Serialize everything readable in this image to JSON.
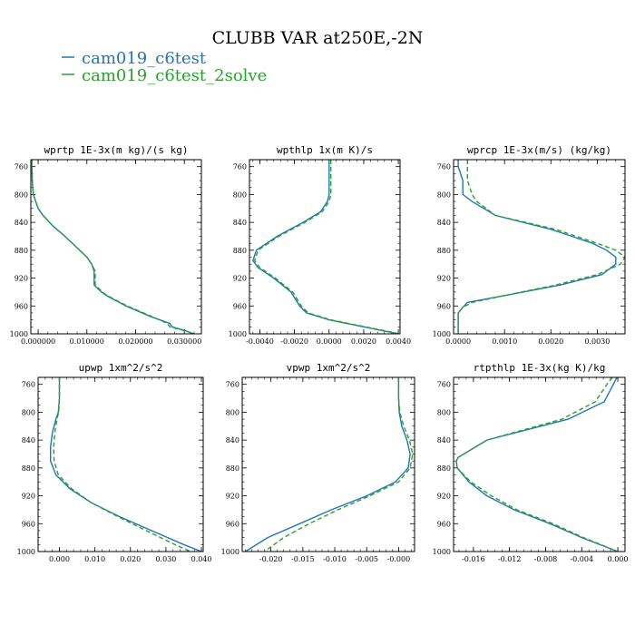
{
  "figure": {
    "title": "CLUBB VAR at250E,-2N",
    "legend": [
      {
        "label": "cam019_c6test",
        "color": "#1f77b4",
        "dash": "solid"
      },
      {
        "label": "cam019_c6test_2solve",
        "color": "#2ca02c",
        "dash": "dashed"
      }
    ]
  },
  "chart_data": [
    {
      "type": "line",
      "title": "wprtp  1E-3x(m kg)/(s kg)",
      "ylim": [
        1000,
        750
      ],
      "xlim": [
        -0.0015,
        0.0335
      ],
      "x_ticks": [
        0.0,
        0.01,
        0.02,
        0.03
      ],
      "x_tick_labels": [
        "0.000000",
        "0.010000",
        "0.020000",
        "0.030000"
      ],
      "y_ticks": [
        760,
        800,
        840,
        880,
        920,
        960,
        1000
      ],
      "series": [
        {
          "name": "cam019_c6test",
          "y": [
            750,
            760,
            780,
            800,
            820,
            830,
            845,
            860,
            880,
            890,
            900,
            910,
            920,
            930,
            940,
            945,
            960,
            975,
            985,
            990,
            995,
            1000
          ],
          "x": [
            -0.0013,
            -0.0013,
            -0.0012,
            -0.001,
            0.0,
            0.001,
            0.003,
            0.0055,
            0.0085,
            0.01,
            0.011,
            0.0115,
            0.0115,
            0.0115,
            0.013,
            0.014,
            0.018,
            0.023,
            0.027,
            0.0275,
            0.03,
            0.032
          ]
        },
        {
          "name": "cam019_c6test_2solve",
          "y": [
            750,
            760,
            780,
            800,
            820,
            830,
            845,
            860,
            880,
            890,
            900,
            910,
            920,
            930,
            940,
            945,
            960,
            975,
            985,
            990,
            995,
            1000
          ],
          "x": [
            -0.0013,
            -0.0013,
            -0.0012,
            -0.001,
            0.0,
            0.001,
            0.003,
            0.0055,
            0.0085,
            0.01,
            0.011,
            0.0117,
            0.0117,
            0.0117,
            0.0132,
            0.0142,
            0.0183,
            0.0233,
            0.0265,
            0.027,
            0.0298,
            0.032
          ]
        }
      ]
    },
    {
      "type": "line",
      "title": "wpthlp  1x(m K)/s",
      "ylim": [
        1000,
        750
      ],
      "xlim": [
        -0.0046,
        0.0041
      ],
      "x_ticks": [
        -0.004,
        -0.002,
        0.0,
        0.002,
        0.004
      ],
      "x_tick_labels": [
        "-0.0040",
        "-0.0020",
        "0.0000",
        "0.0020",
        "0.0040"
      ],
      "y_ticks": [
        760,
        800,
        840,
        880,
        920,
        960,
        1000
      ],
      "series": [
        {
          "name": "cam019_c6test",
          "y": [
            750,
            760,
            780,
            800,
            810,
            825,
            840,
            860,
            880,
            895,
            905,
            920,
            940,
            960,
            970,
            980,
            990,
            1000
          ],
          "x": [
            0.0,
            0.0,
            0.0,
            0.0,
            -0.0001,
            -0.0005,
            -0.0015,
            -0.003,
            -0.0042,
            -0.0044,
            -0.0041,
            -0.0032,
            -0.0022,
            -0.0017,
            -0.0013,
            0.0,
            0.002,
            0.004
          ]
        },
        {
          "name": "cam019_c6test_2solve",
          "y": [
            750,
            760,
            780,
            800,
            810,
            825,
            840,
            860,
            880,
            895,
            905,
            920,
            940,
            960,
            970,
            980,
            990,
            1000
          ],
          "x": [
            0.0001,
            0.0001,
            0.0001,
            0.0001,
            0.0,
            -0.0004,
            -0.0014,
            -0.0029,
            -0.0041,
            -0.0043,
            -0.004,
            -0.0031,
            -0.0021,
            -0.0016,
            -0.0012,
            0.0001,
            0.0021,
            0.0041
          ]
        }
      ]
    },
    {
      "type": "line",
      "title": "wprcp  1E-3x(m/s) (kg/kg)",
      "ylim": [
        1000,
        750
      ],
      "xlim": [
        -0.0001,
        0.0036
      ],
      "x_ticks": [
        0.0,
        0.001,
        0.002,
        0.003
      ],
      "x_tick_labels": [
        "0.0000",
        "0.0010",
        "0.0020",
        "0.0030"
      ],
      "y_ticks": [
        760,
        800,
        840,
        880,
        920,
        960,
        1000
      ],
      "series": [
        {
          "name": "cam019_c6test",
          "y": [
            750,
            760,
            780,
            800,
            810,
            830,
            850,
            870,
            880,
            890,
            900,
            915,
            930,
            945,
            955,
            962,
            970,
            980,
            1000
          ],
          "x": [
            0.0,
            0.0,
            0.0001,
            0.0001,
            0.0003,
            0.0008,
            0.002,
            0.0029,
            0.0032,
            0.0034,
            0.0034,
            0.0031,
            0.0022,
            0.001,
            0.0002,
            0.0001,
            0.0,
            0.0,
            0.0
          ]
        },
        {
          "name": "cam019_c6test_2solve",
          "y": [
            750,
            760,
            780,
            800,
            810,
            830,
            850,
            870,
            880,
            890,
            900,
            915,
            930,
            945,
            955,
            962,
            970,
            980,
            1000
          ],
          "x": [
            0.0002,
            0.0002,
            0.0002,
            0.0003,
            0.0004,
            0.0008,
            0.0021,
            0.003,
            0.0034,
            0.0036,
            0.0035,
            0.003,
            0.0021,
            0.001,
            0.0003,
            0.0001,
            0.0,
            0.0,
            0.0
          ]
        }
      ]
    },
    {
      "type": "line",
      "title": "upwp  1xm^2/s^2",
      "ylim": [
        1000,
        750
      ],
      "xlim": [
        -0.006,
        0.0405
      ],
      "x_ticks": [
        0.0,
        0.01,
        0.02,
        0.03,
        0.04
      ],
      "x_tick_labels": [
        "0.000",
        "0.010",
        "0.020",
        "0.030",
        "0.040"
      ],
      "y_ticks": [
        760,
        800,
        840,
        880,
        920,
        960,
        1000
      ],
      "series": [
        {
          "name": "cam019_c6test",
          "y": [
            750,
            760,
            780,
            800,
            810,
            830,
            850,
            870,
            890,
            910,
            930,
            950,
            970,
            990,
            1000
          ],
          "x": [
            0.0,
            0.0,
            0.0,
            -0.0003,
            -0.001,
            -0.002,
            -0.0025,
            -0.0025,
            -0.001,
            0.003,
            0.009,
            0.017,
            0.026,
            0.035,
            0.04
          ]
        },
        {
          "name": "cam019_c6test_2solve",
          "y": [
            750,
            760,
            780,
            800,
            810,
            830,
            850,
            870,
            890,
            910,
            930,
            950,
            970,
            990,
            1000
          ],
          "x": [
            0.0,
            0.0,
            0.0,
            -0.0002,
            -0.0007,
            -0.0013,
            -0.0016,
            -0.0015,
            -0.0003,
            0.0035,
            0.009,
            0.0165,
            0.0245,
            0.0325,
            0.037
          ]
        }
      ]
    },
    {
      "type": "line",
      "title": "vpwp  1xm^2/s^2",
      "ylim": [
        1000,
        750
      ],
      "xlim": [
        -0.0245,
        0.0025
      ],
      "x_ticks": [
        -0.02,
        -0.015,
        -0.01,
        -0.005,
        0.0
      ],
      "x_tick_labels": [
        "-0.020",
        "-0.015",
        "-0.010",
        "-0.005",
        "-0.000"
      ],
      "y_ticks": [
        760,
        800,
        840,
        880,
        920,
        960,
        1000
      ],
      "series": [
        {
          "name": "cam019_c6test",
          "y": [
            750,
            760,
            780,
            800,
            820,
            840,
            860,
            880,
            900,
            920,
            940,
            960,
            980,
            1000
          ],
          "x": [
            0.0,
            0.0,
            0.0,
            0.0001,
            0.0005,
            0.0013,
            0.0018,
            0.0015,
            -0.0005,
            -0.005,
            -0.0105,
            -0.0155,
            -0.0205,
            -0.024
          ]
        },
        {
          "name": "cam019_c6test_2solve",
          "y": [
            750,
            760,
            780,
            800,
            820,
            840,
            860,
            880,
            900,
            920,
            940,
            960,
            980,
            1000
          ],
          "x": [
            0.0,
            0.0,
            0.0,
            0.0002,
            0.0008,
            0.0017,
            0.0022,
            0.0018,
            0.0,
            -0.0045,
            -0.0095,
            -0.014,
            -0.018,
            -0.021
          ]
        }
      ]
    },
    {
      "type": "line",
      "title": "rtpthlp  1E-3x(kg K)/kg",
      "ylim": [
        1000,
        750
      ],
      "xlim": [
        -0.0182,
        0.0008
      ],
      "x_ticks": [
        -0.016,
        -0.012,
        -0.008,
        -0.004,
        0.0
      ],
      "x_tick_labels": [
        "-0.016",
        "-0.012",
        "-0.008",
        "-0.004",
        "0.000"
      ],
      "y_ticks": [
        760,
        800,
        840,
        880,
        920,
        960,
        1000
      ],
      "series": [
        {
          "name": "cam019_c6test",
          "y": [
            750,
            760,
            785,
            810,
            840,
            865,
            870,
            880,
            900,
            920,
            940,
            960,
            980,
            1000
          ],
          "x": [
            -0.0001,
            -0.0005,
            -0.0015,
            -0.0055,
            -0.0145,
            -0.0177,
            -0.0179,
            -0.0178,
            -0.0165,
            -0.0145,
            -0.0115,
            -0.0075,
            -0.004,
            0.0
          ]
        },
        {
          "name": "cam019_c6test_2solve",
          "y": [
            750,
            760,
            785,
            810,
            840,
            865,
            870,
            880,
            900,
            920,
            940,
            960,
            980,
            1000
          ],
          "x": [
            -0.0006,
            -0.0012,
            -0.0025,
            -0.0062,
            -0.0145,
            -0.0177,
            -0.0179,
            -0.0178,
            -0.0163,
            -0.014,
            -0.0112,
            -0.0072,
            -0.0038,
            0.0
          ]
        }
      ]
    }
  ]
}
